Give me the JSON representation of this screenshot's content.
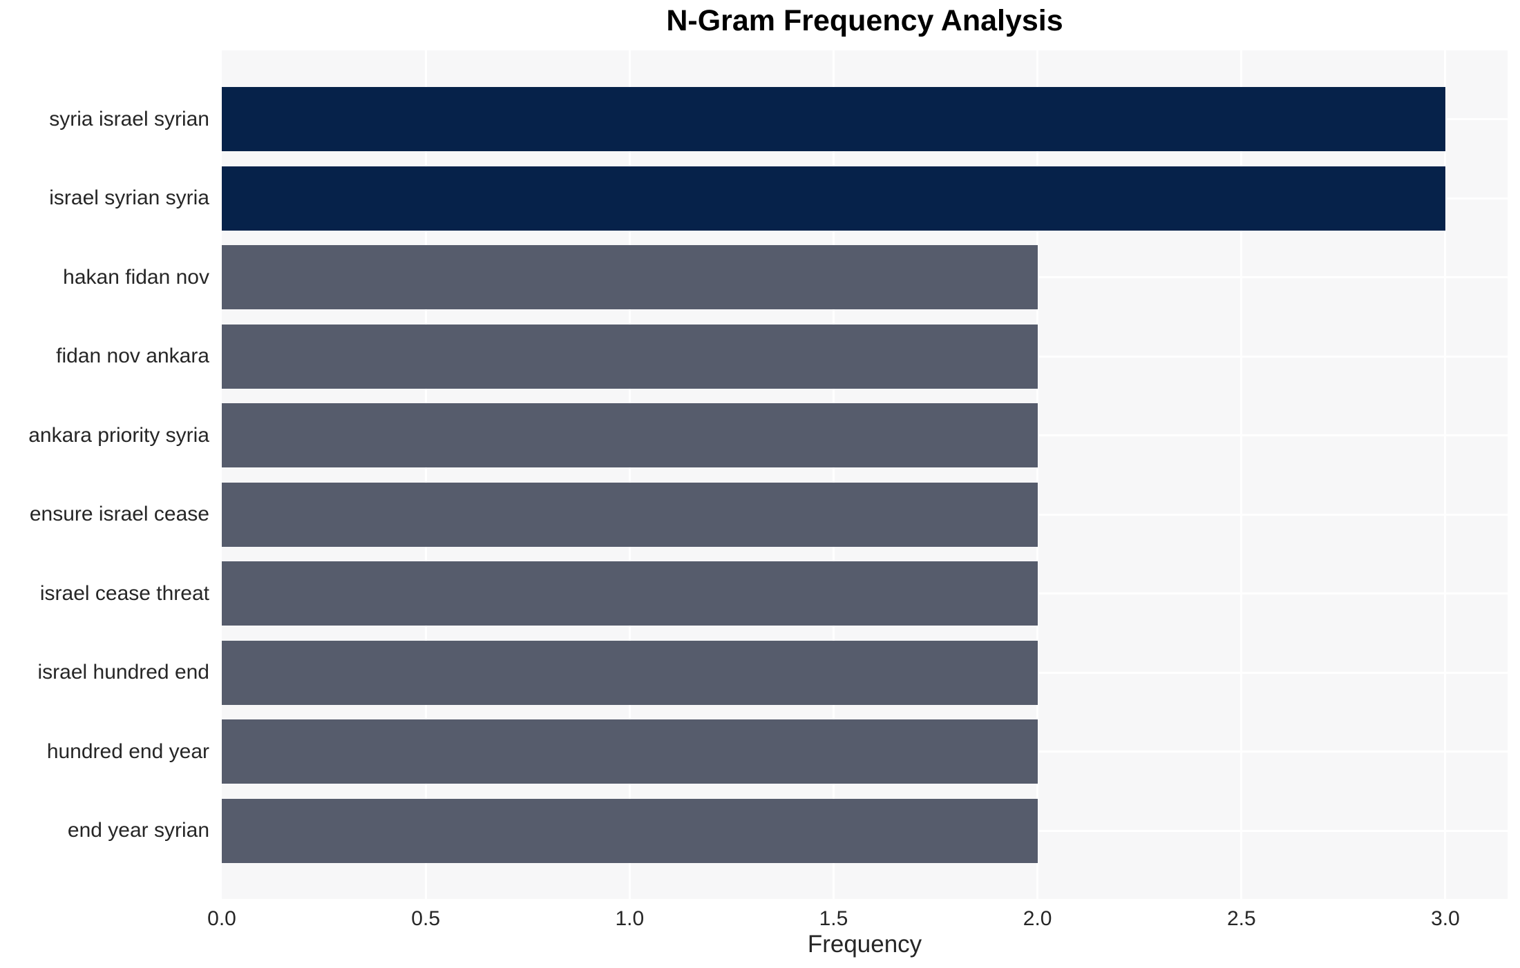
{
  "chart_data": {
    "type": "bar",
    "orientation": "horizontal",
    "title": "N-Gram Frequency Analysis",
    "xlabel": "Frequency",
    "ylabel": "",
    "categories": [
      "syria israel syrian",
      "israel syrian syria",
      "hakan fidan nov",
      "fidan nov ankara",
      "ankara priority syria",
      "ensure israel cease",
      "israel cease threat",
      "israel hundred end",
      "hundred end year",
      "end year syrian"
    ],
    "values": [
      3,
      3,
      2,
      2,
      2,
      2,
      2,
      2,
      2,
      2
    ],
    "bar_colors": [
      "#06224a",
      "#06224a",
      "#565c6c",
      "#565c6c",
      "#565c6c",
      "#565c6c",
      "#565c6c",
      "#565c6c",
      "#565c6c",
      "#565c6c"
    ],
    "xtick_labels": [
      "0.0",
      "0.5",
      "1.0",
      "1.5",
      "2.0",
      "2.5",
      "3.0"
    ],
    "xtick_values": [
      0.0,
      0.5,
      1.0,
      1.5,
      2.0,
      2.5,
      3.0
    ],
    "xlim": [
      0,
      3.1525
    ],
    "grid": true,
    "legend": false,
    "colors": {
      "high_bar": "#06224a",
      "normal_bar": "#565c6c",
      "plot_background": "#f7f7f8",
      "grid_line": "#ffffff",
      "text": "#262626"
    }
  }
}
